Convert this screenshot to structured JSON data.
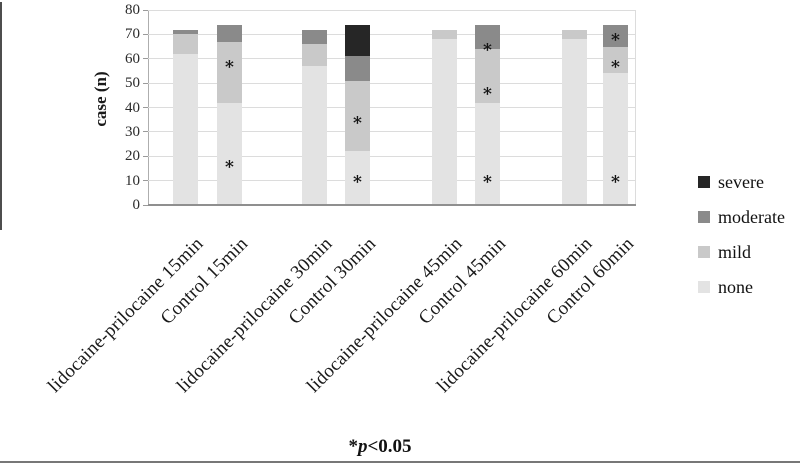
{
  "chart_data": {
    "type": "bar",
    "stacked": true,
    "title": "",
    "xlabel": "",
    "ylabel": "case (n)",
    "ylim": [
      0,
      80
    ],
    "yticks": [
      0,
      10,
      20,
      30,
      40,
      50,
      60,
      70,
      80
    ],
    "grid": true,
    "legend_position": "right",
    "categories": [
      "lidocaine-prilocaine 15min",
      "Control 15min",
      "lidocaine-prilocaine 30min",
      "Control 30min",
      "lidocaine-prilocaine 45min",
      "Control 45min",
      "lidocaine-prilocaine 60min",
      "Control 60min"
    ],
    "series": [
      {
        "name": "none",
        "color": "#e3e3e3",
        "values": [
          62,
          42,
          57,
          22,
          68,
          42,
          68,
          54
        ]
      },
      {
        "name": "mild",
        "color": "#c9c9c9",
        "values": [
          8,
          25,
          9,
          29,
          4,
          22,
          4,
          11
        ]
      },
      {
        "name": "moderate",
        "color": "#8a8a8a",
        "values": [
          2,
          7,
          6,
          10,
          0,
          10,
          0,
          9
        ]
      },
      {
        "name": "severe",
        "color": "#262626",
        "values": [
          0,
          0,
          0,
          13,
          0,
          0,
          0,
          0
        ]
      }
    ],
    "annotations": {
      "marker": "*",
      "points": [
        {
          "category_index": 1,
          "value": 57
        },
        {
          "category_index": 1,
          "value": 16
        },
        {
          "category_index": 3,
          "value": 34
        },
        {
          "category_index": 3,
          "value": 10
        },
        {
          "category_index": 5,
          "value": 64
        },
        {
          "category_index": 5,
          "value": 46
        },
        {
          "category_index": 5,
          "value": 10
        },
        {
          "category_index": 7,
          "value": 68
        },
        {
          "category_index": 7,
          "value": 57
        },
        {
          "category_index": 7,
          "value": 10
        }
      ]
    }
  },
  "legend": {
    "items": [
      {
        "label": "severe",
        "color": "#262626"
      },
      {
        "label": "moderate",
        "color": "#8a8a8a"
      },
      {
        "label": "mild",
        "color": "#c9c9c9"
      },
      {
        "label": "none",
        "color": "#e3e3e3"
      }
    ]
  },
  "footnote": {
    "star": "*",
    "p": "p",
    "rest": "<0.05"
  }
}
